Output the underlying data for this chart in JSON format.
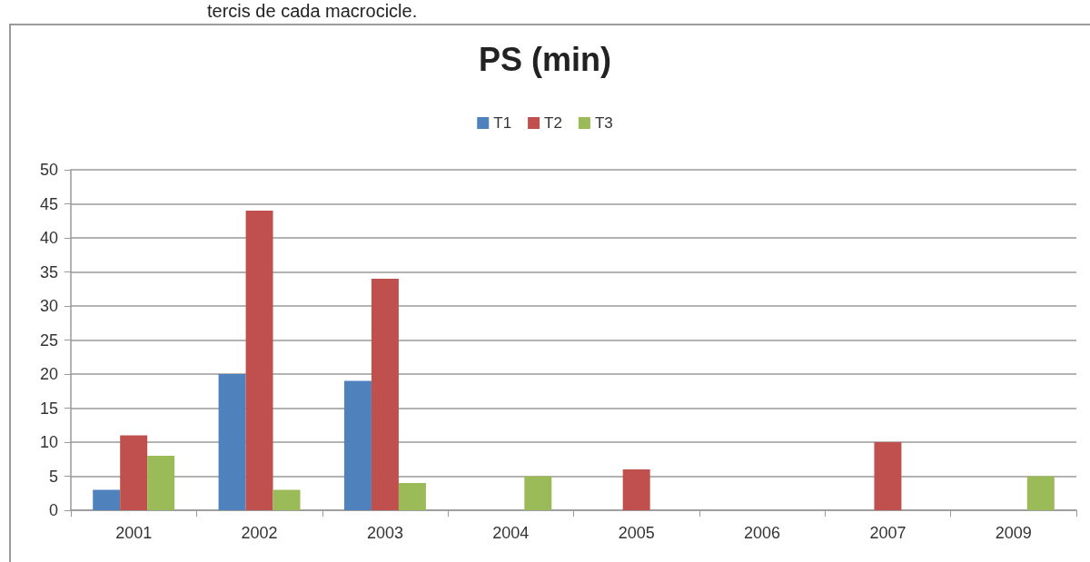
{
  "chart_data": {
    "type": "bar",
    "title": "PS (min)",
    "annotations": [
      "tercis de cada macrocicle."
    ],
    "categories": [
      "2001",
      "2002",
      "2003",
      "2004",
      "2005",
      "2006",
      "2007",
      "2009"
    ],
    "series": [
      {
        "name": "T1",
        "color": "#4f81bd",
        "values": [
          3,
          20,
          19,
          null,
          null,
          null,
          null,
          null
        ]
      },
      {
        "name": "T2",
        "color": "#c0504d",
        "values": [
          11,
          44,
          34,
          null,
          6,
          null,
          10,
          null
        ]
      },
      {
        "name": "T3",
        "color": "#9bbb59",
        "values": [
          8,
          3,
          4,
          5,
          null,
          null,
          null,
          5
        ]
      }
    ],
    "ylim": [
      0,
      50
    ],
    "yticks": [
      0,
      5,
      10,
      15,
      20,
      25,
      30,
      35,
      40,
      45,
      50
    ],
    "grid": "y",
    "legend": "top"
  }
}
